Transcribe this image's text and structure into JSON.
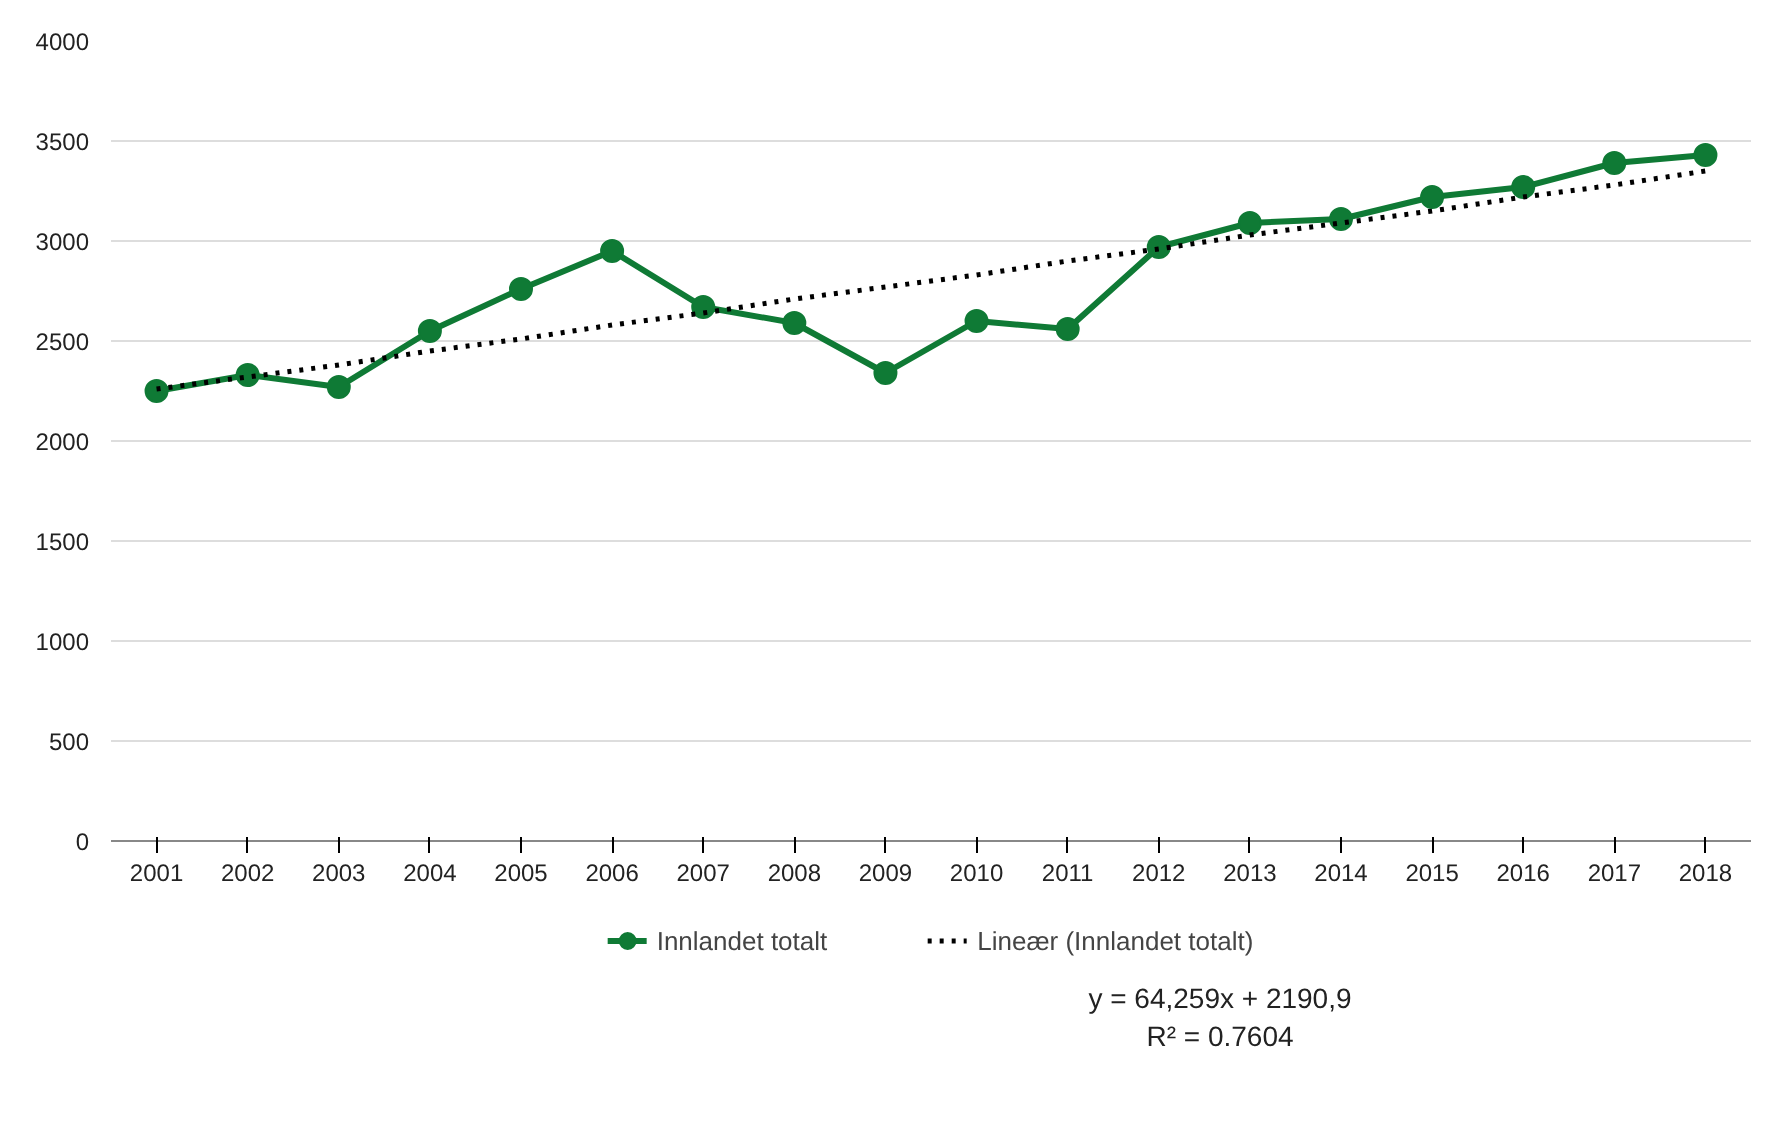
{
  "chart_data": {
    "type": "line",
    "categories": [
      "2001",
      "2002",
      "2003",
      "2004",
      "2005",
      "2006",
      "2007",
      "2008",
      "2009",
      "2010",
      "2011",
      "2012",
      "2013",
      "2014",
      "2015",
      "2016",
      "2017",
      "2018"
    ],
    "series": [
      {
        "name": "Innlandet totalt",
        "color": "#0f7a35",
        "marker": "circle",
        "line_style": "solid",
        "values": [
          2250,
          2330,
          2270,
          2550,
          2760,
          2950,
          2670,
          2590,
          2340,
          2600,
          2560,
          2970,
          3090,
          3110,
          3220,
          3270,
          3390,
          3430
        ]
      },
      {
        "name": "Lineær (Innlandet totalt)",
        "type": "line",
        "color": "#000000",
        "marker": "none",
        "line_style": "dotted",
        "values": [
          2260,
          2320,
          2380,
          2450,
          2510,
          2580,
          2640,
          2710,
          2770,
          2830,
          2900,
          2960,
          3030,
          3090,
          3150,
          3220,
          3280,
          3350
        ]
      }
    ],
    "ylim": [
      0,
      4000
    ],
    "yticks": [
      0,
      500,
      1000,
      1500,
      2000,
      2500,
      3000,
      3500,
      4000
    ],
    "grid": "y",
    "legend": "bottom",
    "annotations": [
      "y = 64,259x + 2190,9",
      "R² = 0.7604"
    ]
  }
}
